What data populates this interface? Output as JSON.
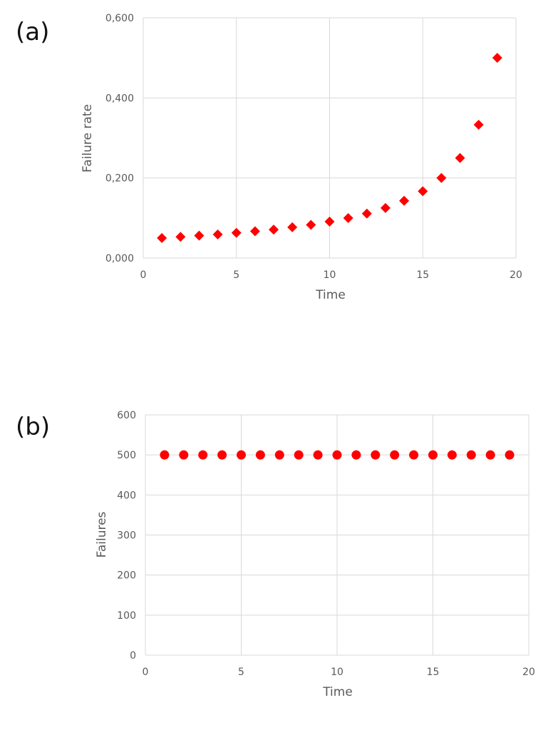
{
  "chart_data": [
    {
      "panel": "(a)",
      "type": "scatter",
      "marker": "diamond",
      "color": "#ff0000",
      "xlabel": "Time",
      "ylabel": "Failure rate",
      "xlim": [
        0,
        20
      ],
      "ylim": [
        0,
        0.6
      ],
      "xticks": [
        "0",
        "5",
        "10",
        "15",
        "20"
      ],
      "yticks": [
        "0,000",
        "0,200",
        "0,400",
        "0,600"
      ],
      "grid": true,
      "x": [
        1,
        2,
        3,
        4,
        5,
        6,
        7,
        8,
        9,
        10,
        11,
        12,
        13,
        14,
        15,
        16,
        17,
        18,
        19
      ],
      "y": [
        0.05,
        0.053,
        0.056,
        0.059,
        0.063,
        0.067,
        0.071,
        0.077,
        0.083,
        0.091,
        0.1,
        0.111,
        0.125,
        0.143,
        0.167,
        0.2,
        0.25,
        0.333,
        0.5
      ]
    },
    {
      "panel": "(b)",
      "type": "scatter",
      "marker": "circle",
      "color": "#ff0000",
      "xlabel": "Time",
      "ylabel": "Failures",
      "xlim": [
        0,
        20
      ],
      "ylim": [
        0,
        600
      ],
      "xticks": [
        "0",
        "5",
        "10",
        "15",
        "20"
      ],
      "yticks": [
        "0",
        "100",
        "200",
        "300",
        "400",
        "500",
        "600"
      ],
      "grid": true,
      "x": [
        1,
        2,
        3,
        4,
        5,
        6,
        7,
        8,
        9,
        10,
        11,
        12,
        13,
        14,
        15,
        16,
        17,
        18,
        19
      ],
      "y": [
        500,
        500,
        500,
        500,
        500,
        500,
        500,
        500,
        500,
        500,
        500,
        500,
        500,
        500,
        500,
        500,
        500,
        500,
        500
      ]
    }
  ]
}
